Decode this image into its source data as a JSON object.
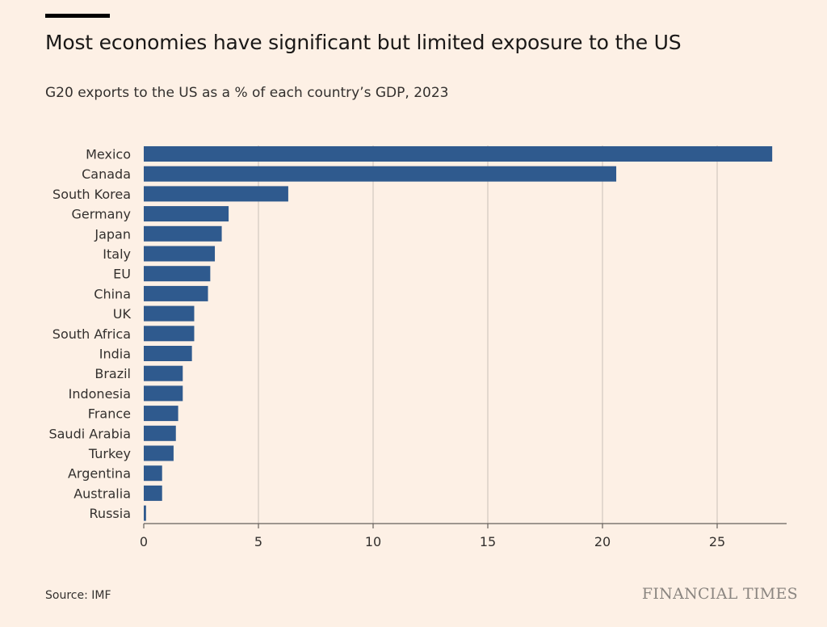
{
  "header": {
    "title": "Most economies have significant but limited exposure to the US",
    "subtitle": "G20 exports to the US as a % of each country’s GDP, 2023"
  },
  "footer": {
    "source": "Source: IMF",
    "brand": "FINANCIAL TIMES"
  },
  "colors": {
    "bar": "#2f5a8e",
    "background": "#fdf0e5",
    "grid": "#c9c0b8",
    "axis": "#66605c",
    "text": "#33302e"
  },
  "chart_data": {
    "type": "bar",
    "orientation": "horizontal",
    "categories": [
      "Mexico",
      "Canada",
      "South Korea",
      "Germany",
      "Japan",
      "Italy",
      "EU",
      "China",
      "UK",
      "South Africa",
      "India",
      "Brazil",
      "Indonesia",
      "France",
      "Saudi Arabia",
      "Turkey",
      "Argentina",
      "Australia",
      "Russia"
    ],
    "values": [
      27.4,
      20.6,
      6.3,
      3.7,
      3.4,
      3.1,
      2.9,
      2.8,
      2.2,
      2.2,
      2.1,
      1.7,
      1.7,
      1.5,
      1.4,
      1.3,
      0.8,
      0.8,
      0.1
    ],
    "xlim": [
      0,
      28
    ],
    "xticks": [
      0,
      5,
      10,
      15,
      20,
      25
    ],
    "grid": true
  }
}
